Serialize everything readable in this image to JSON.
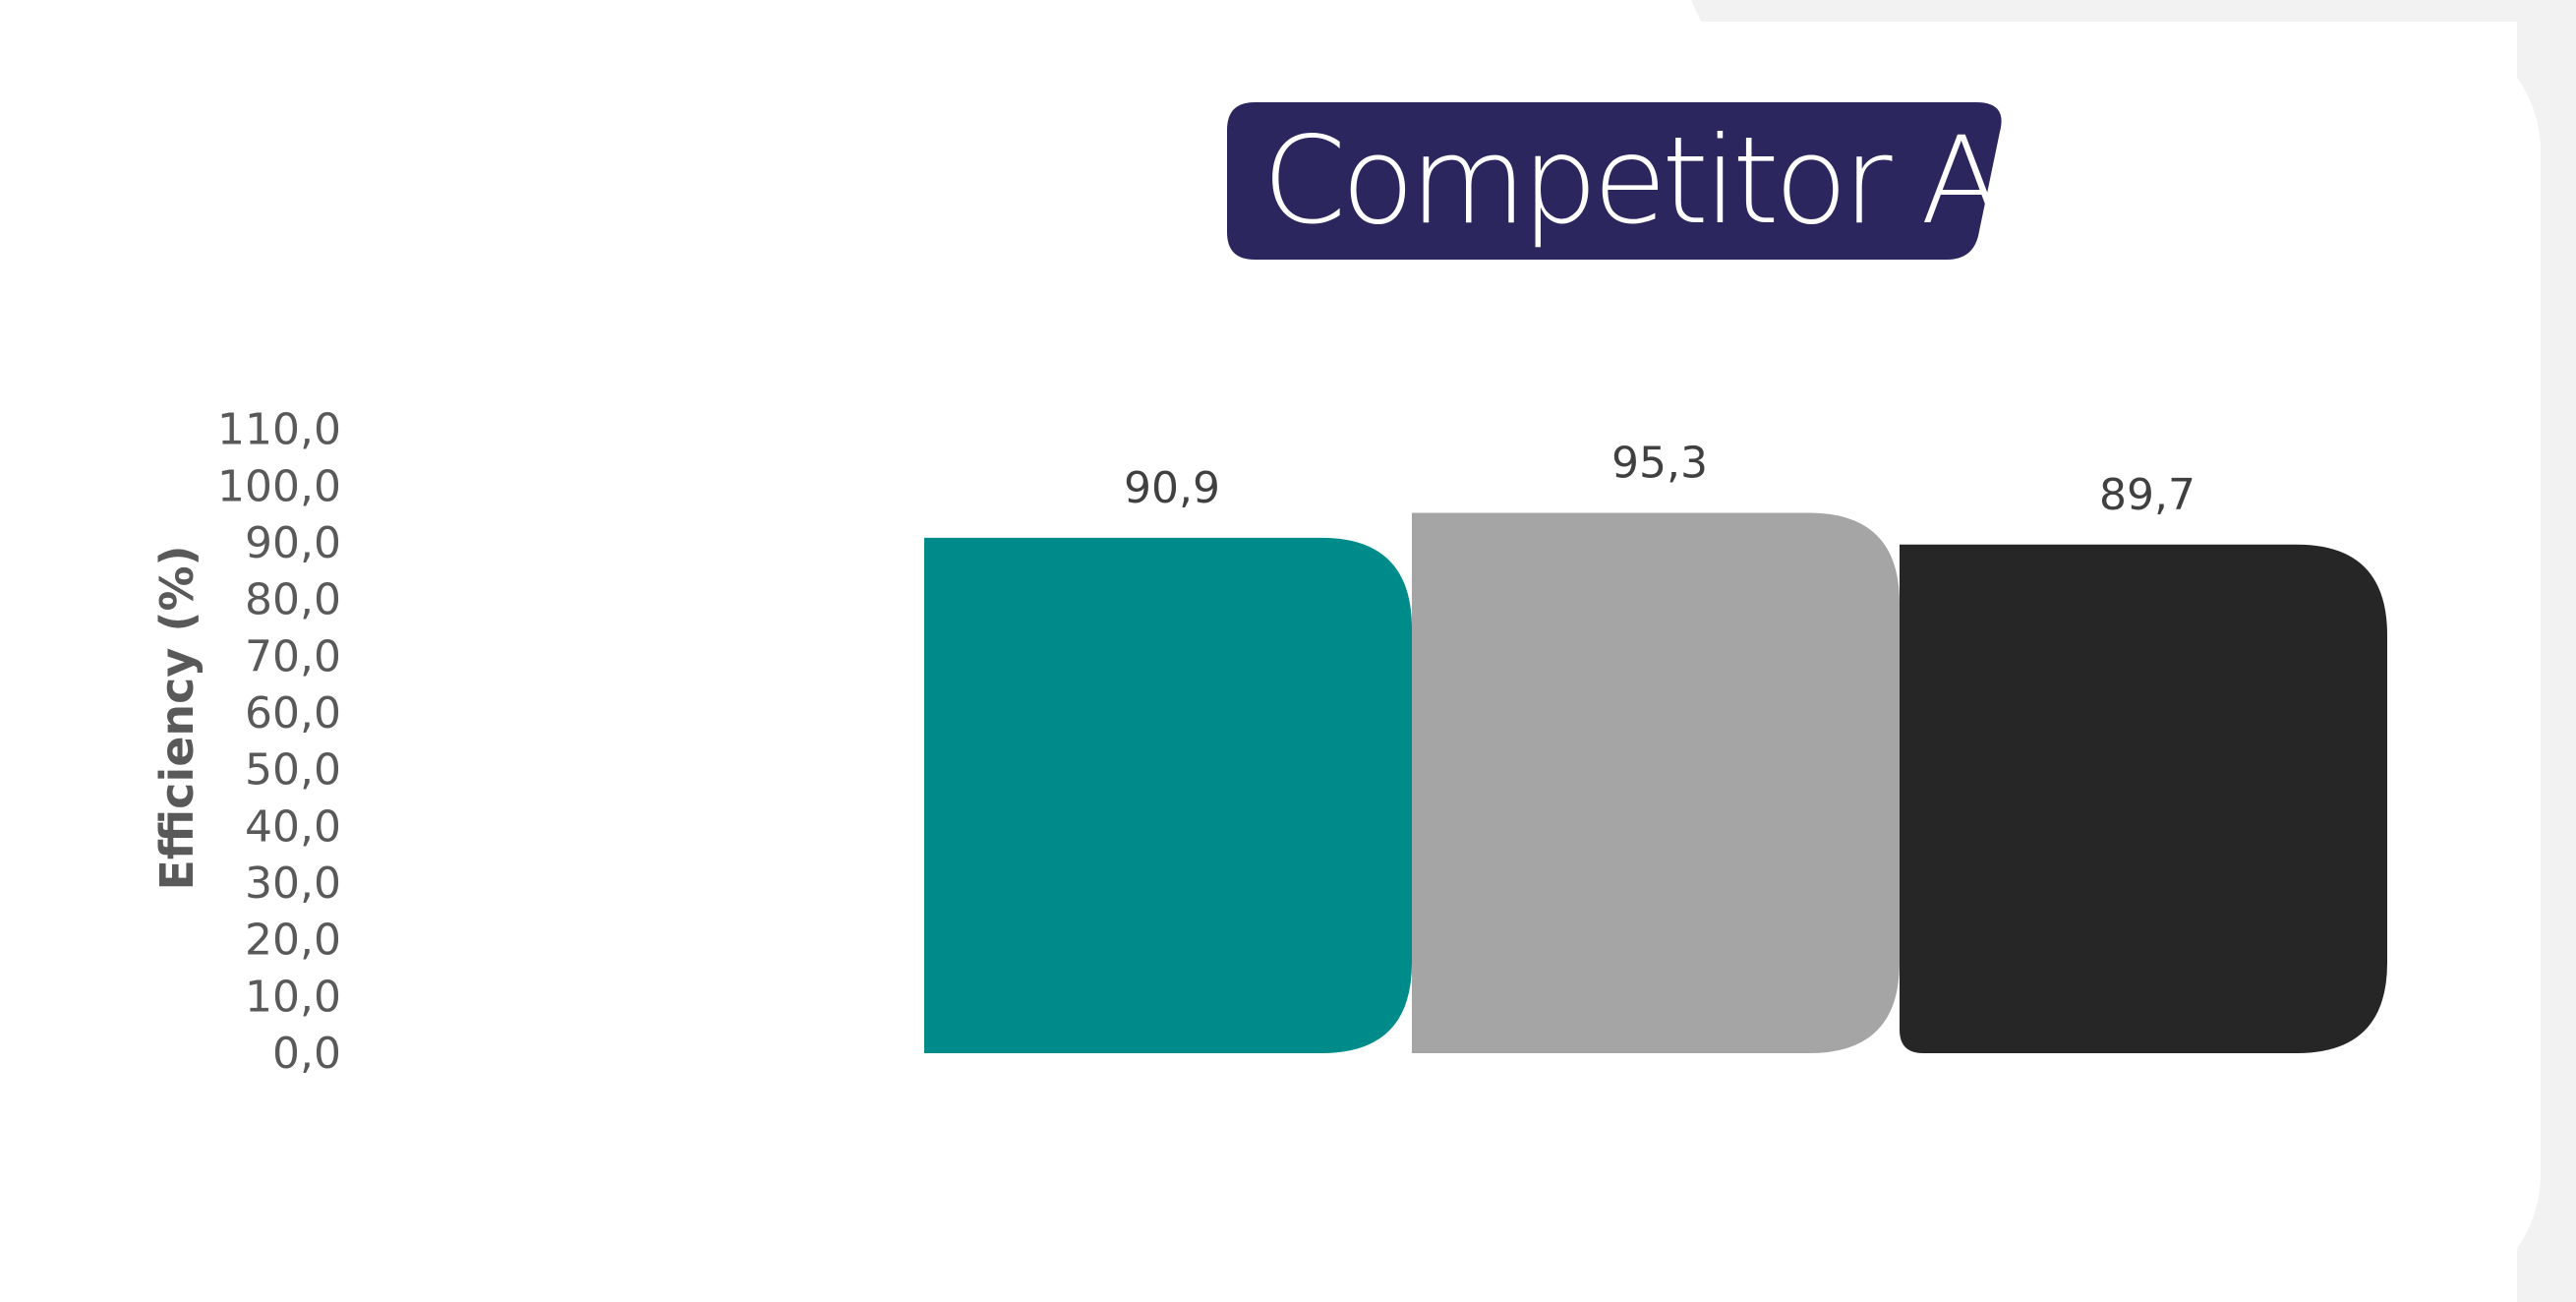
{
  "chart_data": {
    "type": "bar",
    "title": "Competitor AB",
    "xlabel": "",
    "ylabel": "Efficiency (%)",
    "ylim": [
      0,
      110
    ],
    "yticks": [
      "0,0",
      "10,0",
      "20,0",
      "30,0",
      "40,0",
      "50,0",
      "60,0",
      "70,0",
      "80,0",
      "90,0",
      "100,0",
      "110,0"
    ],
    "grid": false,
    "legend": "none",
    "series": [
      {
        "value": 90.9,
        "label": "90,9",
        "color": "#008B8B"
      },
      {
        "value": 95.3,
        "label": "95,3",
        "color": "#A5A5A5"
      },
      {
        "value": 89.7,
        "label": "89,7",
        "color": "#262626"
      }
    ]
  },
  "colors": {
    "title_badge": "#2B275E",
    "background_panel": "#F2F2F2",
    "card": "#FFFFFF"
  }
}
